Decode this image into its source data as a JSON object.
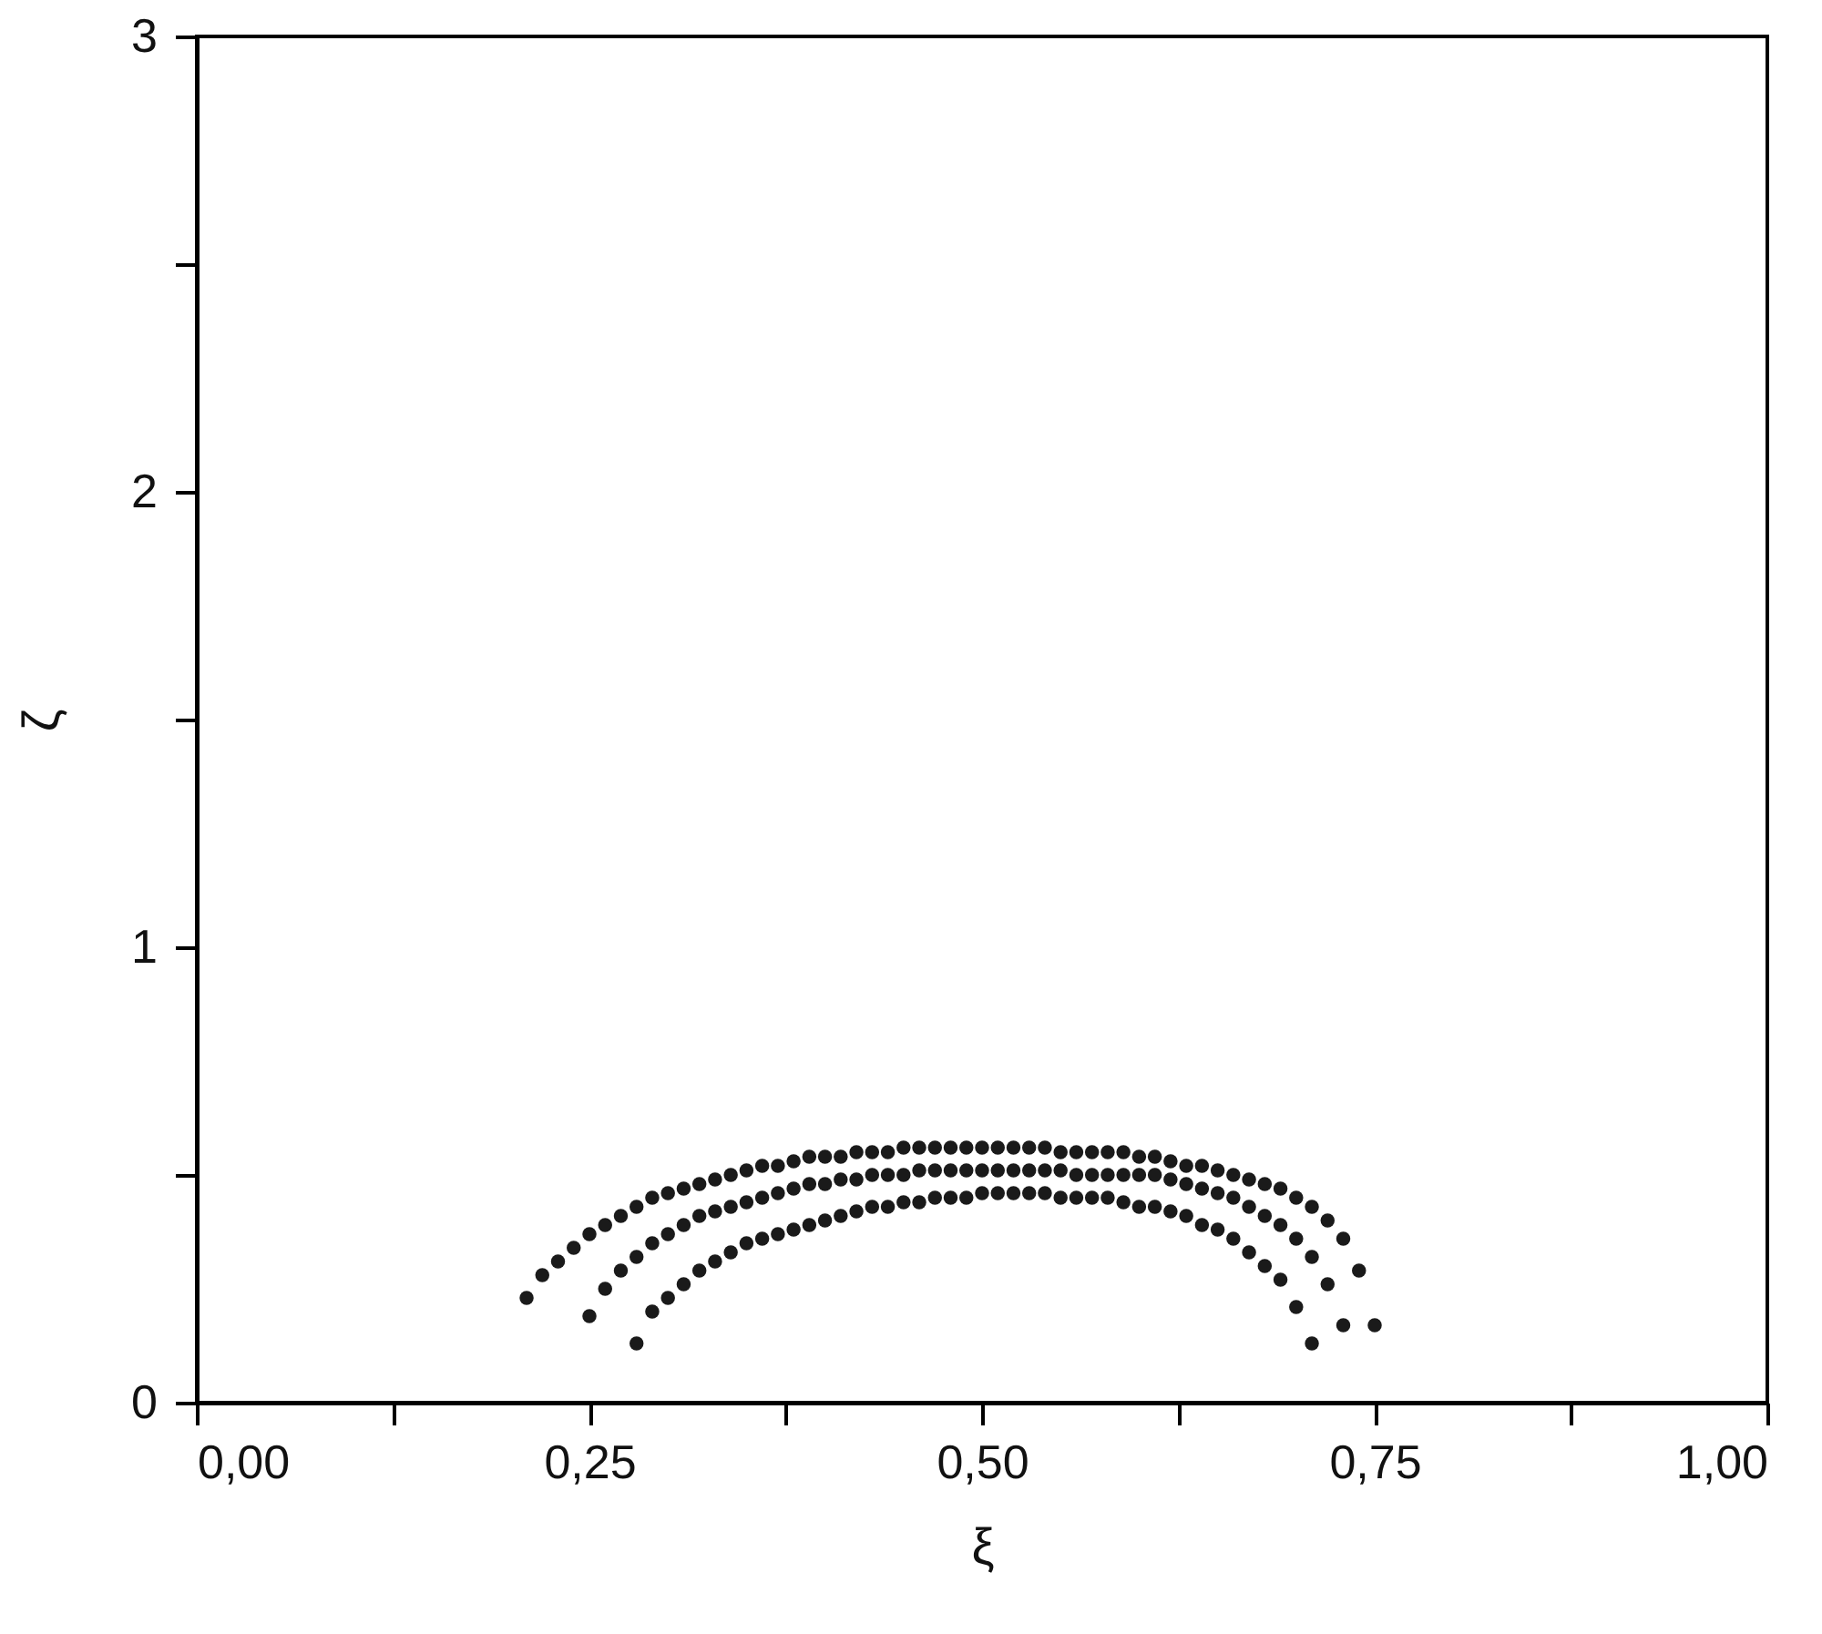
{
  "chart_data": {
    "type": "scatter",
    "xlabel": "ξ",
    "ylabel": "ζ",
    "marker": "circle",
    "grid": false,
    "legend": false,
    "xlim": [
      0,
      1
    ],
    "ylim": [
      0,
      3
    ],
    "xticks": [
      {
        "value": 0,
        "label": "0,00"
      },
      {
        "value": 0.125,
        "label": null
      },
      {
        "value": 0.25,
        "label": "0,25"
      },
      {
        "value": 0.375,
        "label": null
      },
      {
        "value": 0.5,
        "label": "0,50"
      },
      {
        "value": 0.625,
        "label": null
      },
      {
        "value": 0.75,
        "label": "0,75"
      },
      {
        "value": 0.875,
        "label": null
      },
      {
        "value": 1,
        "label": "1,00"
      }
    ],
    "yticks": [
      0,
      {
        "value": 0.5,
        "label": null
      },
      1,
      {
        "value": 1.5,
        "label": null
      },
      2,
      {
        "value": 2.5,
        "label": null
      },
      3
    ],
    "series": [
      {
        "color": "#1a1a1a",
        "x": [
          0.21,
          0.22,
          0.23,
          0.24,
          0.25,
          0.26,
          0.27,
          0.28,
          0.29,
          0.3,
          0.31,
          0.32,
          0.33,
          0.34,
          0.35,
          0.36,
          0.37,
          0.38,
          0.39,
          0.4,
          0.41,
          0.42,
          0.43,
          0.44,
          0.45,
          0.46,
          0.47,
          0.48,
          0.49,
          0.5,
          0.51,
          0.52,
          0.53,
          0.54,
          0.55,
          0.56,
          0.57,
          0.58,
          0.59,
          0.6,
          0.61,
          0.62,
          0.63,
          0.64,
          0.65,
          0.66,
          0.67,
          0.68,
          0.69,
          0.7,
          0.71,
          0.72,
          0.73,
          0.74,
          0.75
        ],
        "values": [
          0.23,
          0.28,
          0.31,
          0.34,
          0.37,
          0.39,
          0.41,
          0.43,
          0.45,
          0.46,
          0.47,
          0.48,
          0.49,
          0.5,
          0.51,
          0.52,
          0.52,
          0.53,
          0.54,
          0.54,
          0.54,
          0.55,
          0.55,
          0.55,
          0.56,
          0.56,
          0.56,
          0.56,
          0.56,
          0.56,
          0.56,
          0.56,
          0.56,
          0.56,
          0.55,
          0.55,
          0.55,
          0.55,
          0.55,
          0.54,
          0.54,
          0.53,
          0.52,
          0.52,
          0.51,
          0.5,
          0.49,
          0.48,
          0.47,
          0.45,
          0.43,
          0.4,
          0.36,
          0.29,
          0.17
        ]
      },
      {
        "color": "#1a1a1a",
        "x": [
          0.25,
          0.26,
          0.27,
          0.28,
          0.29,
          0.3,
          0.31,
          0.32,
          0.33,
          0.34,
          0.35,
          0.36,
          0.37,
          0.38,
          0.39,
          0.4,
          0.41,
          0.42,
          0.43,
          0.44,
          0.45,
          0.46,
          0.47,
          0.48,
          0.49,
          0.5,
          0.51,
          0.52,
          0.53,
          0.54,
          0.55,
          0.56,
          0.57,
          0.58,
          0.59,
          0.6,
          0.61,
          0.62,
          0.63,
          0.64,
          0.65,
          0.66,
          0.67,
          0.68,
          0.69,
          0.7,
          0.71,
          0.72,
          0.73
        ],
        "values": [
          0.19,
          0.25,
          0.29,
          0.32,
          0.35,
          0.37,
          0.39,
          0.41,
          0.42,
          0.43,
          0.44,
          0.45,
          0.46,
          0.47,
          0.48,
          0.48,
          0.49,
          0.49,
          0.5,
          0.5,
          0.5,
          0.51,
          0.51,
          0.51,
          0.51,
          0.51,
          0.51,
          0.51,
          0.51,
          0.51,
          0.51,
          0.5,
          0.5,
          0.5,
          0.5,
          0.5,
          0.5,
          0.49,
          0.48,
          0.47,
          0.46,
          0.45,
          0.43,
          0.41,
          0.39,
          0.36,
          0.32,
          0.26,
          0.17
        ]
      },
      {
        "color": "#1a1a1a",
        "x": [
          0.28,
          0.29,
          0.3,
          0.31,
          0.32,
          0.33,
          0.34,
          0.35,
          0.36,
          0.37,
          0.38,
          0.39,
          0.4,
          0.41,
          0.42,
          0.43,
          0.44,
          0.45,
          0.46,
          0.47,
          0.48,
          0.49,
          0.5,
          0.51,
          0.52,
          0.53,
          0.54,
          0.55,
          0.56,
          0.57,
          0.58,
          0.59,
          0.6,
          0.61,
          0.62,
          0.63,
          0.64,
          0.65,
          0.66,
          0.67,
          0.68,
          0.69,
          0.7,
          0.71
        ],
        "values": [
          0.13,
          0.2,
          0.23,
          0.26,
          0.29,
          0.31,
          0.33,
          0.35,
          0.36,
          0.37,
          0.38,
          0.39,
          0.4,
          0.41,
          0.42,
          0.43,
          0.43,
          0.44,
          0.44,
          0.45,
          0.45,
          0.45,
          0.46,
          0.46,
          0.46,
          0.46,
          0.46,
          0.45,
          0.45,
          0.45,
          0.45,
          0.44,
          0.43,
          0.43,
          0.42,
          0.41,
          0.39,
          0.38,
          0.36,
          0.33,
          0.3,
          0.27,
          0.21,
          0.13
        ]
      }
    ]
  }
}
